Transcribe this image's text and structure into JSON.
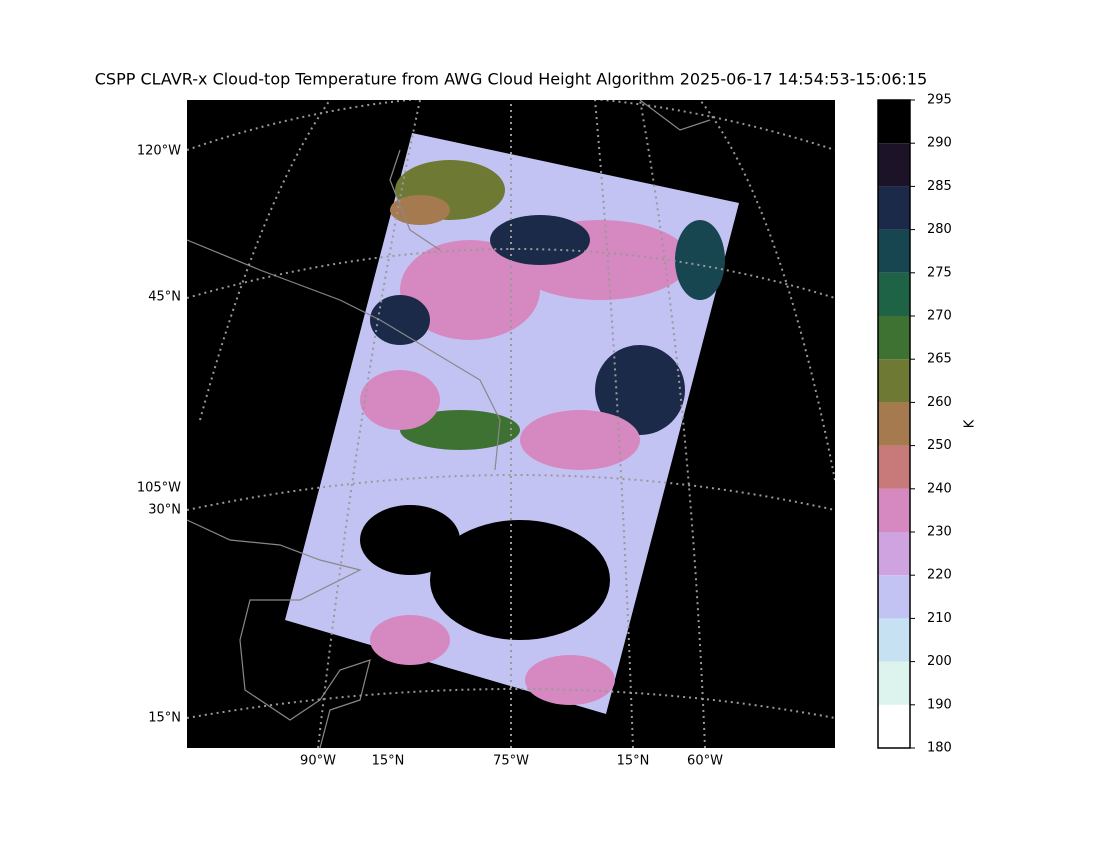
{
  "title": "CSPP CLAVR-x Cloud-top Temperature from AWG Cloud Height Algorithm 2025-06-17 14:54:53-15:06:15",
  "map_labels": {
    "left": [
      "120°W",
      "45°N",
      "105°W",
      "30°N",
      "15°N"
    ],
    "bottom": [
      "90°W",
      "15°N",
      "75°W",
      "15°N",
      "60°W"
    ]
  },
  "colorbar": {
    "label": "K",
    "ticks": [
      180,
      190,
      200,
      210,
      220,
      230,
      240,
      250,
      260,
      265,
      270,
      275,
      280,
      285,
      290,
      295
    ],
    "colors": [
      "#ffffff",
      "#ddf3ee",
      "#c6e2f2",
      "#c3c3f3",
      "#cfa3e0",
      "#d688c0",
      "#c87a7a",
      "#a57a4e",
      "#6e7a33",
      "#3e7232",
      "#1e6346",
      "#174650",
      "#1c2a4a",
      "#1d1328",
      "#000000"
    ]
  }
}
